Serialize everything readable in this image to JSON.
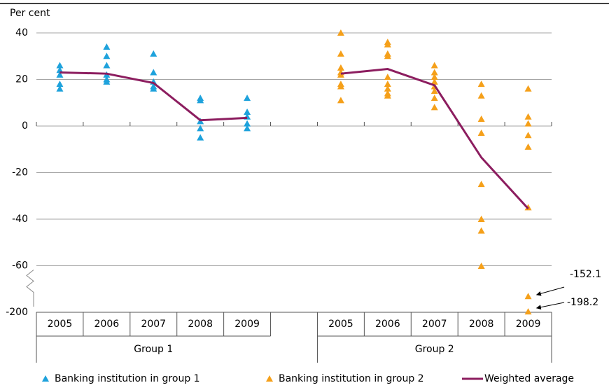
{
  "chart_data": {
    "type": "scatter",
    "y_label": "Per cent",
    "categories": [
      "2005",
      "2006",
      "2007",
      "2008",
      "2009",
      null,
      "2005",
      "2006",
      "2007",
      "2008",
      "2009"
    ],
    "groups": [
      "Group 1",
      "Group 2"
    ],
    "ylim": [
      -200,
      40
    ],
    "yticks": [
      40,
      20,
      0,
      -20,
      -40,
      -60,
      -200
    ],
    "axis_break": true,
    "grid": true,
    "legend": "bottom",
    "series": [
      {
        "name": "Banking institution in group 1",
        "type": "scatter",
        "color": "#1ea2dc",
        "values": [
          [
            26,
            24,
            22,
            18,
            16
          ],
          [
            34,
            30,
            26,
            22,
            20,
            19
          ],
          [
            31,
            23,
            19,
            17,
            16
          ],
          [
            12,
            11,
            2,
            -1,
            -5
          ],
          [
            12,
            6,
            4,
            1,
            -1
          ],
          null,
          null,
          null,
          null,
          null,
          null
        ]
      },
      {
        "name": "Banking institution in group 2",
        "type": "scatter",
        "color": "#f5a01a",
        "values": [
          null,
          null,
          null,
          null,
          null,
          null,
          [
            40,
            31,
            25,
            23,
            22,
            18,
            17,
            11
          ],
          [
            36,
            35,
            31,
            30,
            21,
            18,
            16,
            14,
            13
          ],
          [
            26,
            23,
            21,
            19,
            17,
            15,
            12,
            8
          ],
          [
            18,
            13,
            3,
            -3,
            -25,
            -40,
            -45,
            -61
          ],
          [
            16,
            4,
            1,
            -4,
            -9,
            -35,
            -152.1,
            -198.2
          ]
        ]
      },
      {
        "name": "Weighted average",
        "type": "line",
        "color": "#8c1d5f",
        "values": [
          23,
          22.5,
          18.5,
          2.5,
          3.5,
          null,
          22.5,
          24.5,
          17.5,
          -13.5,
          -35.5
        ]
      }
    ],
    "annotations": [
      {
        "text": "-152.1"
      },
      {
        "text": "-198.2"
      }
    ]
  }
}
